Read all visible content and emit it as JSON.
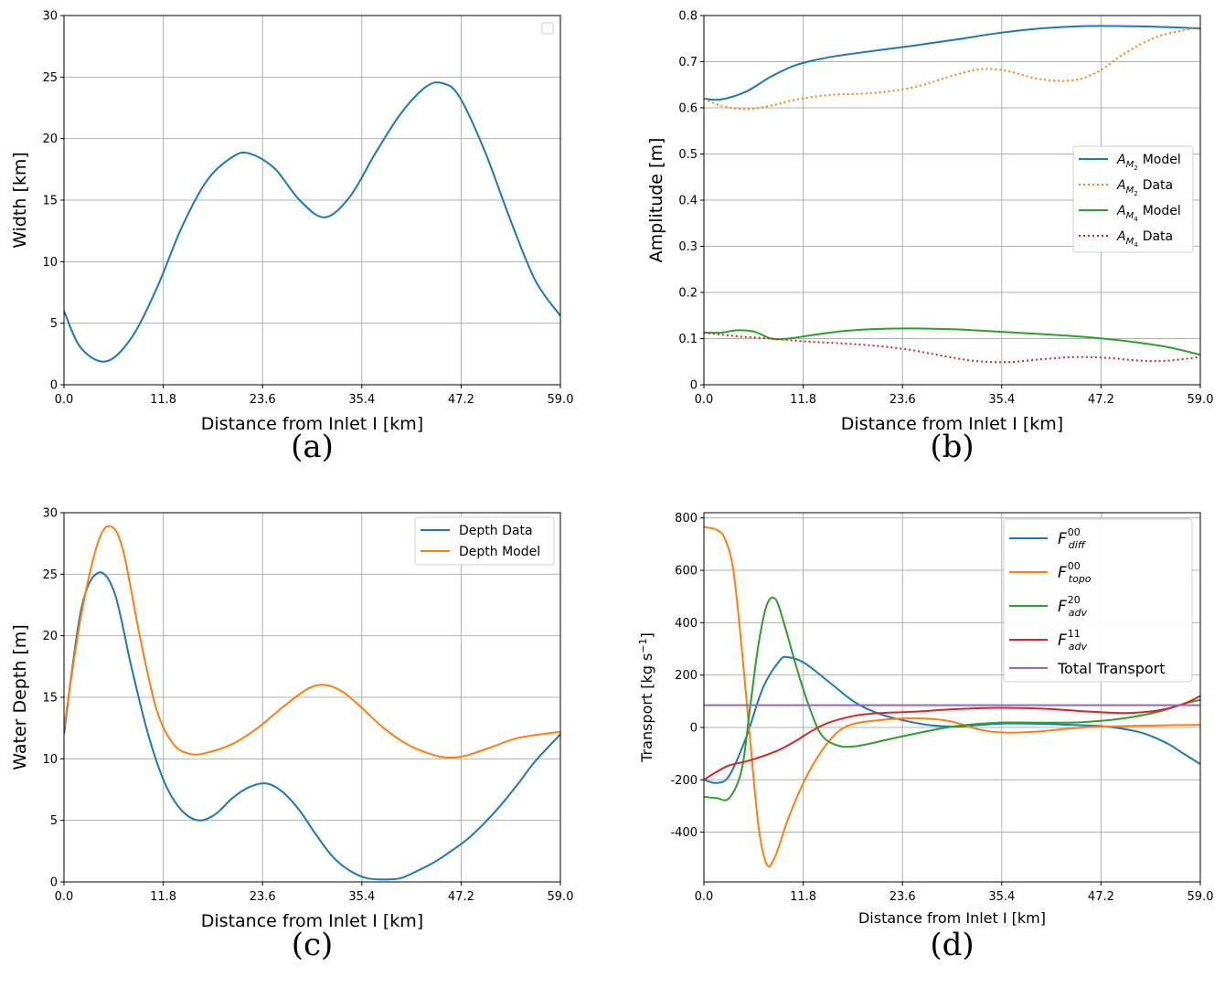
{
  "colors": {
    "blue": "#1f77b4",
    "orange": "#ff7f0e",
    "green": "#2ca02c",
    "red": "#d62728",
    "purple": "#9467bd",
    "grid": "#b0b0b0"
  },
  "chart_data": [
    {
      "id": "a",
      "type": "line",
      "caption": "(a)",
      "xlabel": "Distance from Inlet I [km]",
      "ylabel": "Width [km]",
      "xlim": [
        0,
        59
      ],
      "ylim": [
        0,
        30
      ],
      "xticks": [
        "0.0",
        "11.8",
        "23.6",
        "35.4",
        "47.2",
        "59.0"
      ],
      "yticks": [
        "0",
        "5",
        "10",
        "15",
        "20",
        "25",
        "30"
      ],
      "grid": true,
      "legend": "top-right (empty)",
      "series": [
        {
          "color": "blue",
          "dash": "solid",
          "x": [
            0,
            2,
            5,
            8,
            11,
            14,
            17,
            20,
            22,
            25,
            28,
            31,
            34,
            37,
            40,
            43,
            45,
            47,
            50,
            53,
            56,
            59
          ],
          "y": [
            6.0,
            3.0,
            1.9,
            3.8,
            7.8,
            12.8,
            16.6,
            18.5,
            18.8,
            17.6,
            15.0,
            13.6,
            15.3,
            18.8,
            22.0,
            24.2,
            24.5,
            23.4,
            19.0,
            13.5,
            8.5,
            5.6
          ]
        }
      ]
    },
    {
      "id": "b",
      "type": "line",
      "caption": "(b)",
      "xlabel": "Distance from Inlet I [km]",
      "ylabel": "Amplitude [m]",
      "xlim": [
        0,
        59
      ],
      "ylim": [
        0,
        0.8
      ],
      "xticks": [
        "0.0",
        "11.8",
        "23.6",
        "35.4",
        "47.2",
        "59.0"
      ],
      "yticks": [
        "0",
        "0.1",
        "0.2",
        "0.3",
        "0.4",
        "0.5",
        "0.6",
        "0.7",
        "0.8"
      ],
      "grid": true,
      "legend": "center-right",
      "series": [
        {
          "name": "A_M2 Model",
          "color": "blue",
          "dash": "solid",
          "x": [
            0,
            2,
            5,
            8,
            11,
            15,
            20,
            25,
            30,
            35,
            40,
            45,
            50,
            55,
            59
          ],
          "y": [
            0.62,
            0.618,
            0.635,
            0.668,
            0.693,
            0.71,
            0.723,
            0.735,
            0.748,
            0.762,
            0.772,
            0.777,
            0.777,
            0.775,
            0.772
          ]
        },
        {
          "name": "A_M2 Data",
          "color": "orange",
          "dash": "dotted",
          "x": [
            0,
            2,
            5,
            8,
            11,
            15,
            20,
            25,
            30,
            33,
            36,
            40,
            44,
            47,
            50,
            54,
            59
          ],
          "y": [
            0.62,
            0.605,
            0.597,
            0.605,
            0.618,
            0.628,
            0.632,
            0.645,
            0.672,
            0.684,
            0.68,
            0.662,
            0.66,
            0.68,
            0.718,
            0.755,
            0.775
          ]
        },
        {
          "name": "A_M4 Model",
          "color": "green",
          "dash": "solid",
          "x": [
            0,
            2,
            4,
            6,
            8,
            10,
            13,
            17,
            21,
            25,
            30,
            35,
            40,
            45,
            50,
            55,
            59
          ],
          "y": [
            0.113,
            0.113,
            0.118,
            0.115,
            0.1,
            0.1,
            0.108,
            0.117,
            0.121,
            0.122,
            0.12,
            0.115,
            0.11,
            0.104,
            0.095,
            0.082,
            0.065
          ]
        },
        {
          "name": "A_M4 Data",
          "color": "red",
          "dash": "dotted",
          "x": [
            0,
            4,
            8,
            12,
            16,
            20,
            24,
            28,
            32,
            36,
            40,
            44,
            48,
            52,
            55,
            59
          ],
          "y": [
            0.113,
            0.105,
            0.1,
            0.094,
            0.09,
            0.085,
            0.077,
            0.064,
            0.052,
            0.049,
            0.055,
            0.06,
            0.058,
            0.052,
            0.052,
            0.06
          ]
        }
      ]
    },
    {
      "id": "c",
      "type": "line",
      "caption": "(c)",
      "xlabel": "Distance from Inlet I [km]",
      "ylabel": "Water Depth [m]",
      "xlim": [
        0,
        59
      ],
      "ylim": [
        0,
        30
      ],
      "xticks": [
        "0.0",
        "11.8",
        "23.6",
        "35.4",
        "47.2",
        "59.0"
      ],
      "yticks": [
        "0",
        "5",
        "10",
        "15",
        "20",
        "25",
        "30"
      ],
      "grid": true,
      "legend": "top-right",
      "series": [
        {
          "name": "Depth Data",
          "color": "blue",
          "dash": "solid",
          "x": [
            0,
            2,
            4,
            6,
            8,
            10,
            12,
            14,
            16,
            18,
            20,
            22,
            24,
            26,
            28,
            30,
            32,
            34,
            36,
            38,
            40,
            42,
            44,
            46,
            48,
            50,
            52,
            54,
            56,
            59
          ],
          "y": [
            12.0,
            22.0,
            25.1,
            23.5,
            17.5,
            12.0,
            8.0,
            5.8,
            5.0,
            5.5,
            6.8,
            7.7,
            8.0,
            7.3,
            5.8,
            3.8,
            2.0,
            0.9,
            0.3,
            0.2,
            0.3,
            0.9,
            1.6,
            2.5,
            3.5,
            4.8,
            6.3,
            8.0,
            9.8,
            12.0
          ]
        },
        {
          "name": "Depth Model",
          "color": "orange",
          "dash": "solid",
          "x": [
            0,
            2,
            4,
            5.5,
            7,
            9,
            11,
            13,
            15,
            17,
            20,
            23,
            26,
            29,
            31,
            33,
            35,
            38,
            41,
            44,
            46,
            48,
            51,
            54,
            59
          ],
          "y": [
            12.5,
            21.5,
            27.5,
            28.9,
            27.0,
            20.0,
            14.0,
            11.2,
            10.4,
            10.5,
            11.2,
            12.5,
            14.2,
            15.7,
            16.0,
            15.5,
            14.4,
            12.5,
            11.1,
            10.3,
            10.1,
            10.3,
            11.0,
            11.7,
            12.2
          ]
        }
      ]
    },
    {
      "id": "d",
      "type": "line",
      "caption": "(d)",
      "xlabel": "Distance from Inlet I [km]",
      "ylabel": "Transport [kg s",
      "ylabel_sup": "−1",
      "ylabel_end": "]",
      "xlim": [
        0,
        59
      ],
      "ylim": [
        -590,
        820
      ],
      "xticks": [
        "0.0",
        "11.8",
        "23.6",
        "35.4",
        "47.2",
        "59.0"
      ],
      "yticks": [
        "-400",
        "-200",
        "0",
        "200",
        "400",
        "600",
        "800"
      ],
      "ytick_values": [
        -400,
        -200,
        0,
        200,
        400,
        600,
        800
      ],
      "grid": true,
      "legend": "top-right",
      "series": [
        {
          "name": "F^00_diff",
          "label_main": "F",
          "label_sup": "00",
          "label_sub": "diff",
          "color": "blue",
          "dash": "solid",
          "x": [
            0,
            1.5,
            3,
            5,
            7,
            9,
            10,
            12,
            15,
            18,
            21,
            24,
            27,
            30,
            33,
            36,
            40,
            45,
            48,
            52,
            55,
            57,
            59
          ],
          "y": [
            -200,
            -212,
            -185,
            -40,
            150,
            255,
            268,
            245,
            170,
            95,
            50,
            25,
            8,
            3,
            10,
            15,
            14,
            8,
            3,
            -20,
            -60,
            -100,
            -140
          ]
        },
        {
          "name": "F^00_topo",
          "label_main": "F",
          "label_sup": "00",
          "label_sub": "topo",
          "color": "orange",
          "dash": "solid",
          "x": [
            0,
            1.5,
            2.5,
            3.5,
            4.5,
            5.5,
            6.5,
            7.5,
            8.5,
            10,
            12,
            14,
            16,
            18,
            21,
            25,
            29,
            33,
            36,
            40,
            45,
            50,
            55,
            59
          ],
          "y": [
            765,
            755,
            720,
            600,
            300,
            -50,
            -380,
            -525,
            -490,
            -350,
            -200,
            -90,
            -15,
            15,
            28,
            35,
            25,
            -10,
            -20,
            -15,
            0,
            5,
            8,
            10
          ]
        },
        {
          "name": "F^20_adv",
          "label_main": "F",
          "label_sup": "20",
          "label_sub": "adv",
          "color": "green",
          "dash": "solid",
          "x": [
            0,
            1.5,
            3,
            4.5,
            5.5,
            6.5,
            7.5,
            8.5,
            9.5,
            11,
            12.5,
            14,
            16,
            18,
            20,
            23,
            26,
            30,
            35,
            40,
            45,
            50,
            54,
            57,
            59
          ],
          "y": [
            -265,
            -270,
            -270,
            -160,
            80,
            320,
            470,
            490,
            400,
            230,
            80,
            -30,
            -70,
            -72,
            -60,
            -38,
            -18,
            5,
            18,
            18,
            20,
            35,
            60,
            90,
            105
          ]
        },
        {
          "name": "F^11_adv",
          "label_main": "F",
          "label_sup": "11",
          "label_sub": "adv",
          "color": "red",
          "dash": "solid",
          "x": [
            0,
            1.5,
            3,
            5,
            7,
            9,
            11,
            13,
            15,
            18,
            21,
            25,
            30,
            35,
            40,
            45,
            50,
            54,
            57,
            59
          ],
          "y": [
            -200,
            -170,
            -145,
            -130,
            -110,
            -85,
            -50,
            -10,
            20,
            45,
            55,
            60,
            70,
            75,
            72,
            62,
            55,
            65,
            90,
            120
          ]
        },
        {
          "name": "Total Transport",
          "color": "purple",
          "dash": "solid",
          "x": [
            0,
            59
          ],
          "y": [
            85,
            85
          ]
        }
      ]
    }
  ]
}
